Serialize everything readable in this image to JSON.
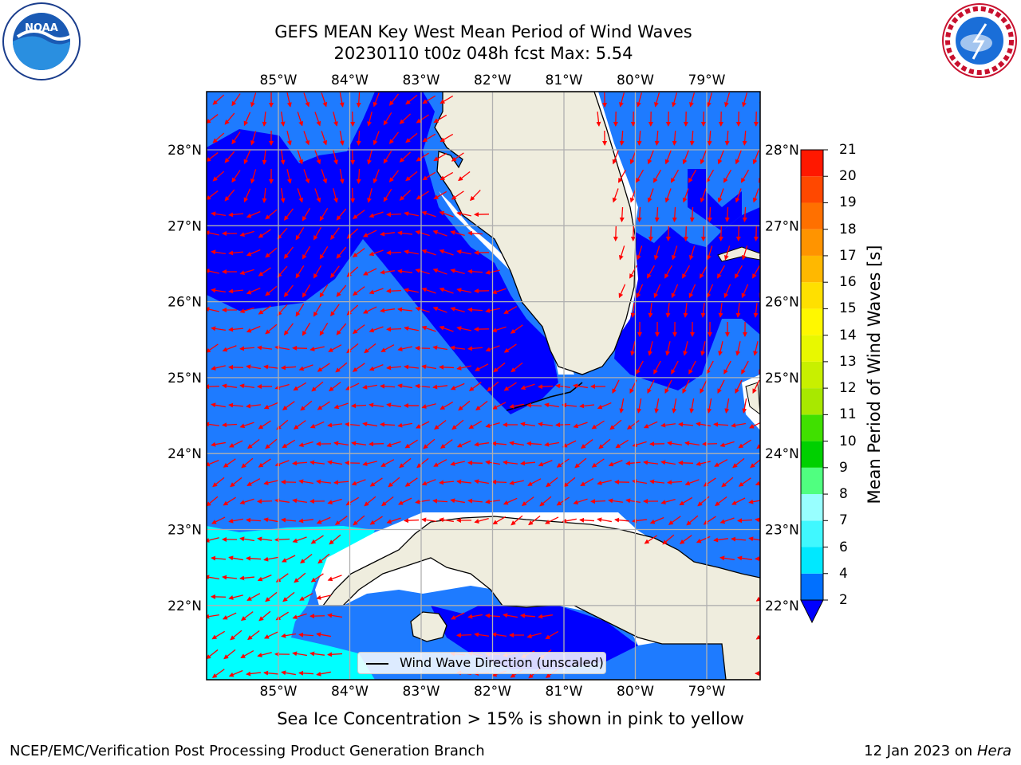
{
  "title": {
    "line1": "GEFS MEAN Key West Mean Period of Wind Waves",
    "line2": "20230110 t00z 048h fcst   Max: 5.54"
  },
  "logos": {
    "left": "noaa-logo",
    "right": "national-weather-service-logo"
  },
  "map": {
    "lon_labels": [
      "85°W",
      "84°W",
      "83°W",
      "82°W",
      "81°W",
      "80°W",
      "79°W"
    ],
    "lat_labels": [
      "28°N",
      "27°N",
      "26°N",
      "25°N",
      "24°N",
      "23°N",
      "22°N"
    ],
    "lon_range": [
      -86.0,
      -78.25
    ],
    "lat_range": [
      21.0,
      28.75
    ],
    "projection": "plate carree",
    "grid": true,
    "land_color": "#efedde",
    "arrow_color": "#ff0000",
    "legend": {
      "label": "Wind Wave Direction (unscaled)",
      "placement": "bottom-center"
    },
    "subtitle": "Sea Ice Concentration > 15% is shown in pink to yellow"
  },
  "colorbar": {
    "label": "Mean Period of Wind Waves [s]",
    "ticks": [
      "21",
      "20",
      "19",
      "18",
      "17",
      "16",
      "15",
      "14",
      "13",
      "12",
      "11",
      "10",
      "9",
      "8",
      "7",
      "6",
      "4",
      "2"
    ],
    "bounds": [
      2,
      4,
      6,
      7,
      8,
      9,
      10,
      11,
      12,
      13,
      14,
      15,
      16,
      17,
      18,
      19,
      20,
      21
    ],
    "colors": [
      "#0070ff",
      "#00e8ff",
      "#40f8ff",
      "#98ffff",
      "#50ff80",
      "#00d000",
      "#40e000",
      "#a8e800",
      "#c8f000",
      "#e8f800",
      "#fff800",
      "#ffe000",
      "#ffb800",
      "#ff9400",
      "#ff7000",
      "#ff4800",
      "#ff1800"
    ],
    "under_color": "#0000ff",
    "extend": "min"
  },
  "chart_data": {
    "type": "heatmap",
    "variable": "Mean Period of Wind Waves",
    "units": "s",
    "max": 5.54,
    "regions": [
      {
        "range": "< 2",
        "color": "#0000ff"
      },
      {
        "range": "2-4",
        "color": "#1e7bff"
      },
      {
        "range": "4-6",
        "color": "#00ffff"
      }
    ]
  },
  "footer": {
    "left": "NCEP/EMC/Verification Post Processing Product Generation Branch",
    "right_date": "12 Jan 2023 on ",
    "right_host": "Hera"
  }
}
